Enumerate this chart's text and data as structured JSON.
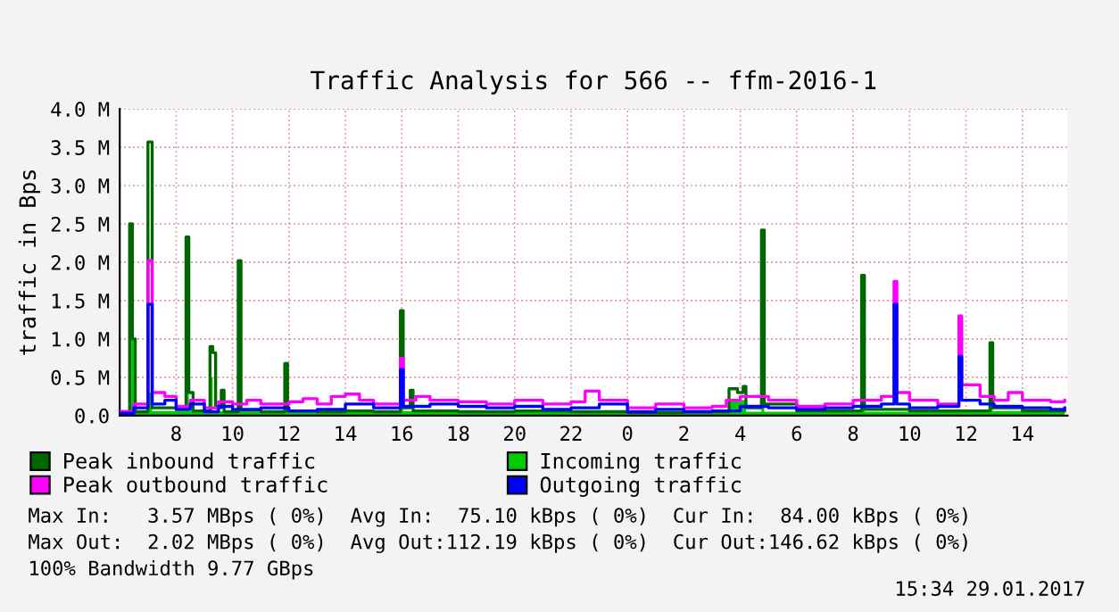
{
  "chart_data": {
    "type": "step",
    "title": "Traffic Analysis for 566 -- ffm-2016-1",
    "ylabel": "traffic in Bps",
    "xlim": [
      "2017-01-28T06:00",
      "2017-01-29T15:36"
    ],
    "ylim": [
      0,
      4.0
    ],
    "xticks": [
      {
        "value": "2017-01-28T08:00",
        "label": "8"
      },
      {
        "value": "2017-01-28T10:00",
        "label": "10"
      },
      {
        "value": "2017-01-28T12:00",
        "label": "12"
      },
      {
        "value": "2017-01-28T14:00",
        "label": "14"
      },
      {
        "value": "2017-01-28T16:00",
        "label": "16"
      },
      {
        "value": "2017-01-28T18:00",
        "label": "18"
      },
      {
        "value": "2017-01-28T20:00",
        "label": "20"
      },
      {
        "value": "2017-01-28T22:00",
        "label": "22"
      },
      {
        "value": "2017-01-29T00:00",
        "label": "0"
      },
      {
        "value": "2017-01-29T02:00",
        "label": "2"
      },
      {
        "value": "2017-01-29T04:00",
        "label": "4"
      },
      {
        "value": "2017-01-29T06:00",
        "label": "6"
      },
      {
        "value": "2017-01-29T08:00",
        "label": "8"
      },
      {
        "value": "2017-01-29T10:00",
        "label": "10"
      },
      {
        "value": "2017-01-29T12:00",
        "label": "12"
      },
      {
        "value": "2017-01-29T14:00",
        "label": "14"
      }
    ],
    "yticks": [
      {
        "value": 0,
        "label": "0.0"
      },
      {
        "value": 0.5,
        "label": "0.5 M"
      },
      {
        "value": 1.0,
        "label": "1.0 M"
      },
      {
        "value": 1.5,
        "label": "1.5 M"
      },
      {
        "value": 2.0,
        "label": "2.0 M"
      },
      {
        "value": 2.5,
        "label": "2.5 M"
      },
      {
        "value": 3.0,
        "label": "3.0 M"
      },
      {
        "value": 3.5,
        "label": "3.5 M"
      },
      {
        "value": 4.0,
        "label": "4.0 M"
      }
    ],
    "grid": true,
    "legend": "bottom",
    "series": [
      {
        "name": "Peak inbound traffic",
        "color": "#006600",
        "x": [
          "2017-01-28T06:00",
          "2017-01-28T06:21",
          "2017-01-28T06:27",
          "2017-01-28T06:33",
          "2017-01-28T07:00",
          "2017-01-28T07:09",
          "2017-01-28T08:00",
          "2017-01-28T08:21",
          "2017-01-28T08:27",
          "2017-01-28T08:36",
          "2017-01-28T09:12",
          "2017-01-28T09:18",
          "2017-01-28T09:24",
          "2017-01-28T09:36",
          "2017-01-28T09:42",
          "2017-01-28T10:12",
          "2017-01-28T10:18",
          "2017-01-28T11:00",
          "2017-01-28T11:51",
          "2017-01-28T11:57",
          "2017-01-28T13:00",
          "2017-01-28T14:00",
          "2017-01-28T15:00",
          "2017-01-28T15:57",
          "2017-01-28T16:03",
          "2017-01-28T16:18",
          "2017-01-28T16:24",
          "2017-01-28T18:00",
          "2017-01-28T20:00",
          "2017-01-28T22:00",
          "2017-01-29T00:00",
          "2017-01-29T02:00",
          "2017-01-29T03:36",
          "2017-01-29T03:54",
          "2017-01-29T04:06",
          "2017-01-29T04:12",
          "2017-01-29T04:45",
          "2017-01-29T04:51",
          "2017-01-29T06:00",
          "2017-01-29T08:18",
          "2017-01-29T08:24",
          "2017-01-29T10:00",
          "2017-01-29T12:51",
          "2017-01-29T12:57",
          "2017-01-29T14:00",
          "2017-01-29T15:30"
        ],
        "values": [
          0.05,
          2.5,
          1.0,
          0.05,
          3.57,
          0.1,
          0.08,
          2.33,
          0.3,
          0.06,
          0.9,
          0.82,
          0.1,
          0.33,
          0.05,
          2.02,
          0.07,
          0.05,
          0.68,
          0.06,
          0.05,
          0.06,
          0.05,
          1.37,
          0.1,
          0.33,
          0.06,
          0.05,
          0.06,
          0.05,
          0.04,
          0.05,
          0.35,
          0.3,
          0.38,
          0.1,
          2.42,
          0.15,
          0.06,
          1.83,
          0.08,
          0.06,
          0.95,
          0.1,
          0.06,
          0.06
        ]
      },
      {
        "name": "Peak outbound traffic",
        "color": "#ff00ff",
        "x": [
          "2017-01-28T06:00",
          "2017-01-28T06:30",
          "2017-01-28T07:00",
          "2017-01-28T07:09",
          "2017-01-28T07:36",
          "2017-01-28T08:00",
          "2017-01-28T08:30",
          "2017-01-28T09:00",
          "2017-01-28T09:30",
          "2017-01-28T10:00",
          "2017-01-28T10:30",
          "2017-01-28T11:00",
          "2017-01-28T12:00",
          "2017-01-28T12:30",
          "2017-01-28T13:00",
          "2017-01-28T13:30",
          "2017-01-28T14:00",
          "2017-01-28T14:30",
          "2017-01-28T15:00",
          "2017-01-28T15:57",
          "2017-01-28T16:03",
          "2017-01-28T16:30",
          "2017-01-28T17:00",
          "2017-01-28T18:00",
          "2017-01-28T19:00",
          "2017-01-28T20:00",
          "2017-01-28T21:00",
          "2017-01-28T22:00",
          "2017-01-28T22:30",
          "2017-01-28T23:00",
          "2017-01-29T00:00",
          "2017-01-29T01:00",
          "2017-01-29T02:00",
          "2017-01-29T03:00",
          "2017-01-29T03:30",
          "2017-01-29T04:00",
          "2017-01-29T05:00",
          "2017-01-29T06:00",
          "2017-01-29T07:00",
          "2017-01-29T08:00",
          "2017-01-29T09:00",
          "2017-01-29T09:27",
          "2017-01-29T09:33",
          "2017-01-29T10:00",
          "2017-01-29T11:00",
          "2017-01-29T11:45",
          "2017-01-29T11:51",
          "2017-01-29T12:30",
          "2017-01-29T13:00",
          "2017-01-29T13:30",
          "2017-01-29T14:00",
          "2017-01-29T15:00",
          "2017-01-29T15:30"
        ],
        "values": [
          0.05,
          0.15,
          2.02,
          0.3,
          0.25,
          0.12,
          0.2,
          0.1,
          0.18,
          0.15,
          0.2,
          0.15,
          0.18,
          0.22,
          0.15,
          0.25,
          0.28,
          0.2,
          0.15,
          0.75,
          0.2,
          0.25,
          0.2,
          0.18,
          0.15,
          0.2,
          0.15,
          0.18,
          0.32,
          0.2,
          0.1,
          0.15,
          0.1,
          0.12,
          0.2,
          0.25,
          0.2,
          0.12,
          0.15,
          0.2,
          0.25,
          1.75,
          0.3,
          0.2,
          0.15,
          1.3,
          0.4,
          0.25,
          0.2,
          0.3,
          0.2,
          0.18,
          0.2
        ]
      },
      {
        "name": "Incoming traffic",
        "color": "#00cc00",
        "type": "area",
        "x": [
          "2017-01-28T06:00",
          "2017-01-28T06:21",
          "2017-01-28T06:27",
          "2017-01-28T06:33",
          "2017-01-28T07:00",
          "2017-01-28T07:09",
          "2017-01-28T08:21",
          "2017-01-28T08:27",
          "2017-01-28T09:12",
          "2017-01-28T09:18",
          "2017-01-28T10:12",
          "2017-01-28T10:18",
          "2017-01-28T11:51",
          "2017-01-28T11:57",
          "2017-01-28T15:57",
          "2017-01-28T16:03",
          "2017-01-29T03:36",
          "2017-01-29T04:12",
          "2017-01-29T04:45",
          "2017-01-29T04:51",
          "2017-01-29T08:18",
          "2017-01-29T08:24",
          "2017-01-29T12:51",
          "2017-01-29T12:57",
          "2017-01-29T15:30"
        ],
        "values": [
          0.04,
          1.5,
          1.0,
          0.05,
          0.3,
          0.06,
          1.2,
          0.06,
          0.5,
          0.06,
          0.75,
          0.05,
          0.35,
          0.05,
          0.5,
          0.06,
          0.2,
          0.05,
          0.3,
          0.05,
          0.5,
          0.05,
          0.6,
          0.06,
          0.06
        ]
      },
      {
        "name": "Outgoing traffic",
        "color": "#0000ff",
        "x": [
          "2017-01-28T06:00",
          "2017-01-28T06:30",
          "2017-01-28T07:00",
          "2017-01-28T07:09",
          "2017-01-28T07:36",
          "2017-01-28T08:00",
          "2017-01-28T08:30",
          "2017-01-28T09:00",
          "2017-01-28T09:30",
          "2017-01-28T10:00",
          "2017-01-28T11:00",
          "2017-01-28T12:00",
          "2017-01-28T13:00",
          "2017-01-28T14:00",
          "2017-01-28T15:00",
          "2017-01-28T15:57",
          "2017-01-28T16:03",
          "2017-01-28T17:00",
          "2017-01-28T18:00",
          "2017-01-28T19:00",
          "2017-01-28T20:00",
          "2017-01-28T21:00",
          "2017-01-28T22:00",
          "2017-01-28T23:00",
          "2017-01-29T00:00",
          "2017-01-29T01:00",
          "2017-01-29T02:00",
          "2017-01-29T03:00",
          "2017-01-29T04:00",
          "2017-01-29T05:00",
          "2017-01-29T06:00",
          "2017-01-29T07:00",
          "2017-01-29T08:00",
          "2017-01-29T09:00",
          "2017-01-29T09:27",
          "2017-01-29T09:33",
          "2017-01-29T10:00",
          "2017-01-29T11:00",
          "2017-01-29T11:45",
          "2017-01-29T11:51",
          "2017-01-29T12:30",
          "2017-01-29T13:00",
          "2017-01-29T14:00",
          "2017-01-29T15:00",
          "2017-01-29T15:30"
        ],
        "values": [
          0.03,
          0.1,
          1.45,
          0.15,
          0.2,
          0.08,
          0.15,
          0.05,
          0.12,
          0.08,
          0.1,
          0.06,
          0.08,
          0.15,
          0.1,
          0.6,
          0.12,
          0.15,
          0.12,
          0.1,
          0.12,
          0.08,
          0.1,
          0.15,
          0.05,
          0.08,
          0.05,
          0.06,
          0.12,
          0.1,
          0.08,
          0.1,
          0.12,
          0.15,
          1.45,
          0.15,
          0.1,
          0.12,
          0.77,
          0.2,
          0.15,
          0.12,
          0.1,
          0.08,
          0.1
        ]
      }
    ],
    "annotations": [
      "Max In:   3.57 MBps ( 0%)  Avg In:  75.10 kBps ( 0%)  Cur In:  84.00 kBps ( 0%)",
      "Max Out:  2.02 MBps ( 0%)  Avg Out:112.19 kBps ( 0%)  Cur Out:146.62 kBps ( 0%)",
      "100% Bandwidth 9.77 GBps",
      "15:34 29.01.2017"
    ]
  }
}
